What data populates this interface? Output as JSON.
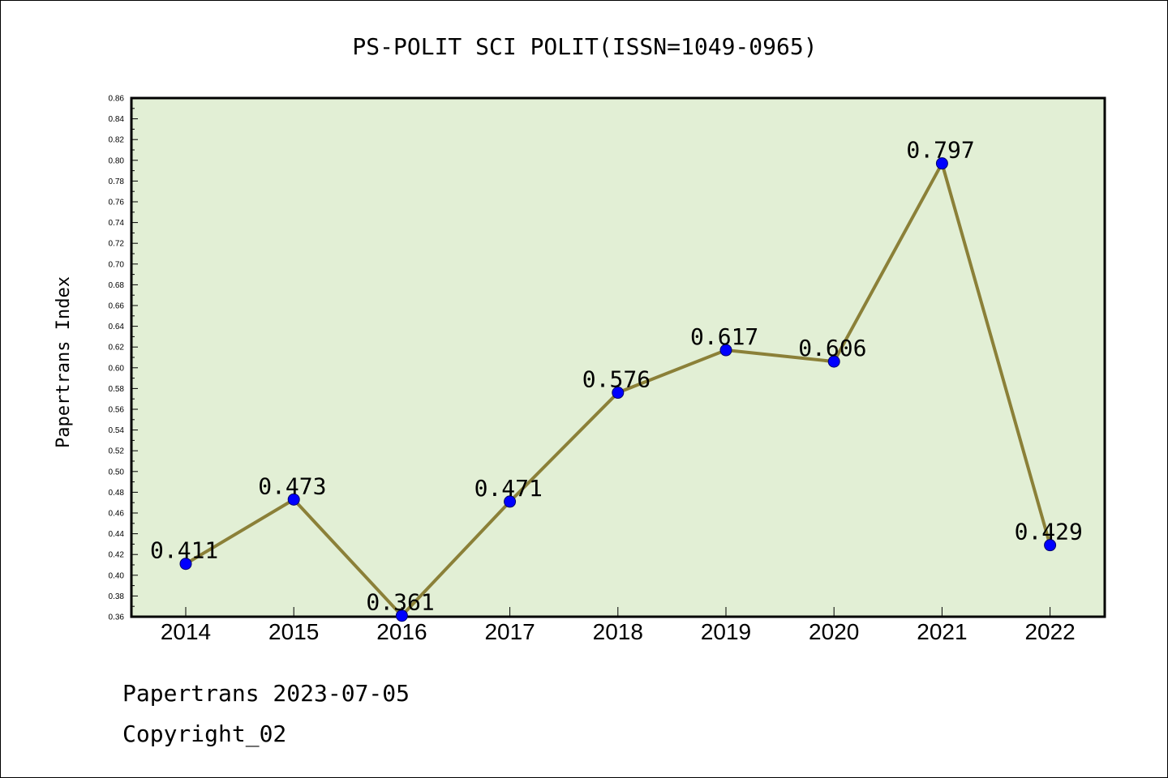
{
  "chart_data": {
    "type": "line",
    "title": "PS-POLIT SCI POLIT(ISSN=1049-0965)",
    "xlabel": "",
    "ylabel": "Papertrans Index",
    "categories": [
      "2014",
      "2015",
      "2016",
      "2017",
      "2018",
      "2019",
      "2020",
      "2021",
      "2022"
    ],
    "values": [
      0.411,
      0.473,
      0.361,
      0.471,
      0.576,
      0.617,
      0.606,
      0.797,
      0.429
    ],
    "data_labels": [
      "0.411",
      "0.473",
      "0.361",
      "0.471",
      "0.576",
      "0.617",
      "0.606",
      "0.797",
      "0.429"
    ],
    "ylim": [
      0.36,
      0.86
    ],
    "yticks": [
      "0.36",
      "0.38",
      "0.40",
      "0.42",
      "0.44",
      "0.46",
      "0.48",
      "0.50",
      "0.52",
      "0.54",
      "0.56",
      "0.58",
      "0.60",
      "0.62",
      "0.64",
      "0.66",
      "0.68",
      "0.70",
      "0.72",
      "0.74",
      "0.76",
      "0.78",
      "0.80",
      "0.82",
      "0.84",
      "0.86"
    ],
    "grid": false,
    "legend": "none",
    "colors": {
      "plot_background": "#e2efd5",
      "line": "#8b8038",
      "marker": "#0000ff"
    }
  },
  "footer": {
    "line1": "Papertrans 2023-07-05",
    "line2": "Copyright_02"
  }
}
